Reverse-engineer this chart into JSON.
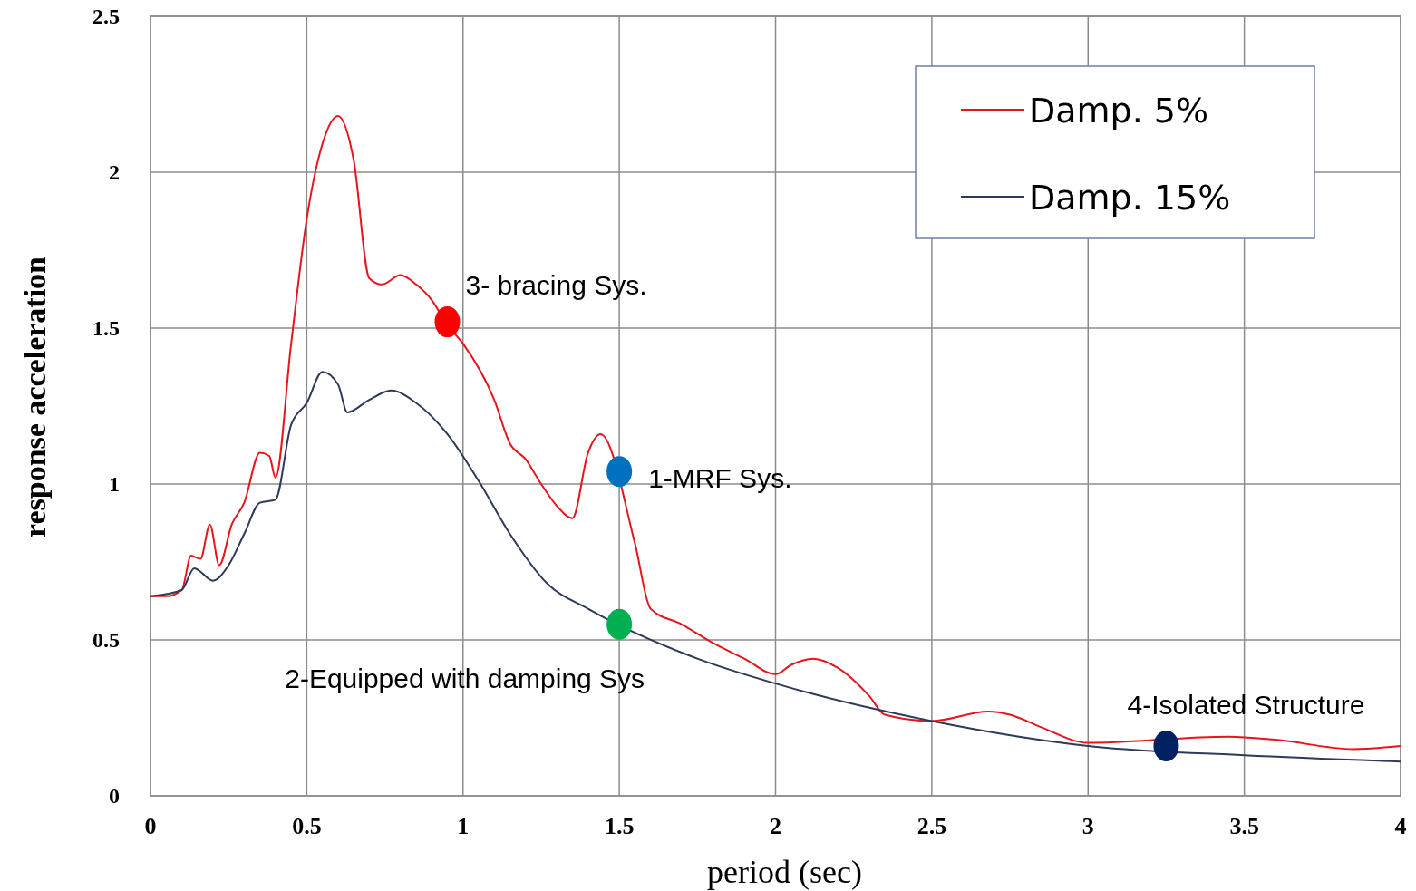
{
  "chart_data": {
    "type": "line",
    "xlabel": "period (sec)",
    "ylabel": "response acceleration",
    "xlim": [
      0,
      4
    ],
    "xticks": [
      0,
      0.5,
      1,
      1.5,
      2,
      2.5,
      3,
      3.5,
      4
    ],
    "ylim": [
      0,
      2.5
    ],
    "yticks": [
      0,
      0.5,
      1,
      1.5,
      2,
      2.5
    ],
    "grid": true,
    "legend": "top right",
    "line_style": "solid",
    "series": [
      {
        "name": "Damp. 5%",
        "color": "#e8141c",
        "x": [
          0,
          0.05,
          0.1,
          0.13,
          0.16,
          0.19,
          0.22,
          0.26,
          0.3,
          0.35,
          0.38,
          0.4,
          0.45,
          0.5,
          0.55,
          0.6,
          0.65,
          0.7,
          0.74,
          0.8,
          0.85,
          0.9,
          0.95,
          1.0,
          1.1,
          1.15,
          1.2,
          1.25,
          1.3,
          1.35,
          1.4,
          1.44,
          1.55,
          1.6,
          1.7,
          1.8,
          1.9,
          2.0,
          2.05,
          2.12,
          2.2,
          2.3,
          2.35,
          2.5,
          2.68,
          2.75,
          2.85,
          3.0,
          3.45,
          3.6,
          3.85,
          4.0
        ],
        "values": [
          0.64,
          0.64,
          0.66,
          0.77,
          0.76,
          0.87,
          0.74,
          0.87,
          0.94,
          1.1,
          1.09,
          1.02,
          1.45,
          1.85,
          2.09,
          2.18,
          2.04,
          1.66,
          1.64,
          1.67,
          1.64,
          1.59,
          1.51,
          1.45,
          1.27,
          1.13,
          1.08,
          1.0,
          0.93,
          0.89,
          1.1,
          1.16,
          0.81,
          0.6,
          0.55,
          0.49,
          0.44,
          0.39,
          0.42,
          0.44,
          0.41,
          0.32,
          0.26,
          0.24,
          0.27,
          0.26,
          0.22,
          0.17,
          0.19,
          0.18,
          0.15,
          0.16
        ]
      },
      {
        "name": "Damp. 15%",
        "color": "#2e3a59",
        "x": [
          0,
          0.1,
          0.14,
          0.2,
          0.25,
          0.3,
          0.35,
          0.4,
          0.45,
          0.5,
          0.55,
          0.6,
          0.63,
          0.7,
          0.77,
          0.85,
          0.95,
          1.05,
          1.15,
          1.27,
          1.4,
          1.75,
          2.0,
          2.5,
          3.0,
          3.5,
          4.0
        ],
        "values": [
          0.64,
          0.66,
          0.73,
          0.69,
          0.74,
          0.84,
          0.94,
          0.95,
          1.19,
          1.26,
          1.36,
          1.32,
          1.23,
          1.27,
          1.3,
          1.26,
          1.16,
          1.01,
          0.84,
          0.68,
          0.6,
          0.44,
          0.36,
          0.24,
          0.16,
          0.13,
          0.11
        ]
      },
      {
        "type": "scatter",
        "marker": "circle",
        "x": [
          0.95,
          1.5,
          1.5,
          3.25
        ],
        "values": [
          1.52,
          1.04,
          0.55,
          0.16
        ],
        "colors": [
          "#ff0000",
          "#0070c0",
          "#00b050",
          "#002060"
        ]
      }
    ],
    "annotations": [
      {
        "text": "3- bracing Sys.",
        "x": 0.95,
        "y": 1.52
      },
      {
        "text": "1-MRF Sys.",
        "x": 1.5,
        "y": 1.04
      },
      {
        "text": "2-Equipped with damping Sys",
        "x": 1.5,
        "y": 0.55
      },
      {
        "text": "4-Isolated Structure",
        "x": 3.25,
        "y": 0.16
      }
    ]
  }
}
